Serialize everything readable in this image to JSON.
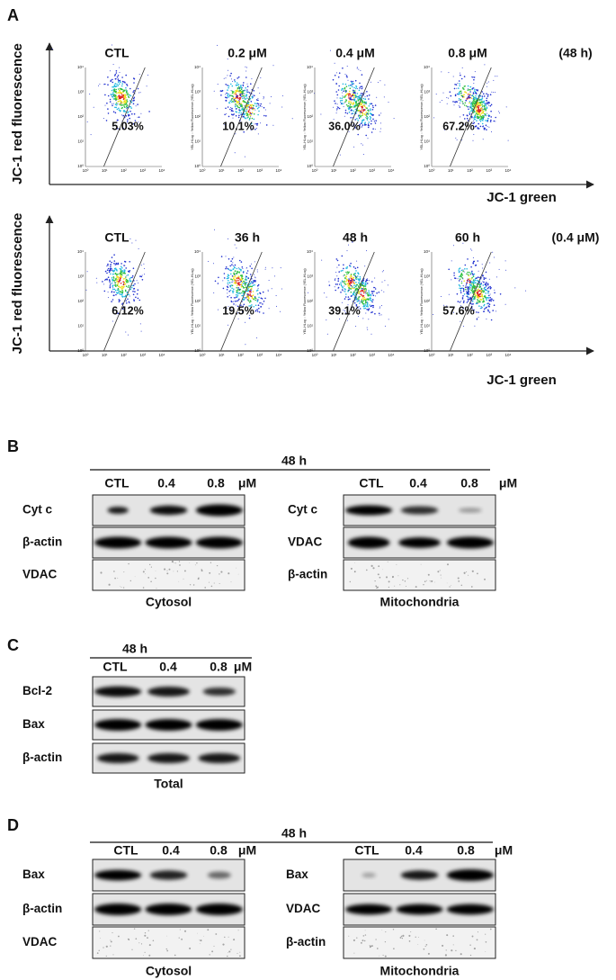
{
  "panel_a": {
    "label": "A",
    "y_axis_label": "JC-1 red fluorescence",
    "x_axis_label": "JC-1 green",
    "plot_axis_label": "YEL-HLog :: Yellow Fluorescence (YEL-HLog)",
    "plot_ticks": [
      "10⁰",
      "10¹",
      "10²",
      "10³",
      "10⁴"
    ],
    "rows": [
      {
        "titles": [
          "CTL",
          "0.2 μM",
          "0.4 μM",
          "0.8 μM"
        ],
        "condition": "(48 h)",
        "percentages": [
          "5.03%",
          "10.1%",
          "36.0%",
          "67.2%"
        ]
      },
      {
        "titles": [
          "CTL",
          "36 h",
          "48 h",
          "60 h"
        ],
        "condition": "(0.4 μM)",
        "percentages": [
          "6.12%",
          "19.5%",
          "39.1%",
          "57.6%"
        ]
      }
    ]
  },
  "panel_b": {
    "label": "B",
    "time": "48 h",
    "lanes": [
      "CTL",
      "0.4",
      "0.8"
    ],
    "unit": "μM",
    "groups": [
      {
        "blots": [
          "Cyt c",
          "β-actin",
          "VDAC"
        ],
        "fraction": "Cytosol"
      },
      {
        "blots": [
          "Cyt c",
          "VDAC",
          "β-actin"
        ],
        "fraction": "Mitochondria"
      }
    ]
  },
  "panel_c": {
    "label": "C",
    "time": "48 h",
    "lanes": [
      "CTL",
      "0.4",
      "0.8"
    ],
    "unit": "μM",
    "groups": [
      {
        "blots": [
          "Bcl-2",
          "Bax",
          "β-actin"
        ],
        "fraction": "Total"
      }
    ]
  },
  "panel_d": {
    "label": "D",
    "time": "48 h",
    "lanes": [
      "CTL",
      "0.4",
      "0.8"
    ],
    "unit": "μM",
    "groups": [
      {
        "blots": [
          "Bax",
          "β-actin",
          "VDAC"
        ],
        "fraction": "Cytosol"
      },
      {
        "blots": [
          "Bax",
          "VDAC",
          "β-actin"
        ],
        "fraction": "Mitochondria"
      }
    ]
  }
}
